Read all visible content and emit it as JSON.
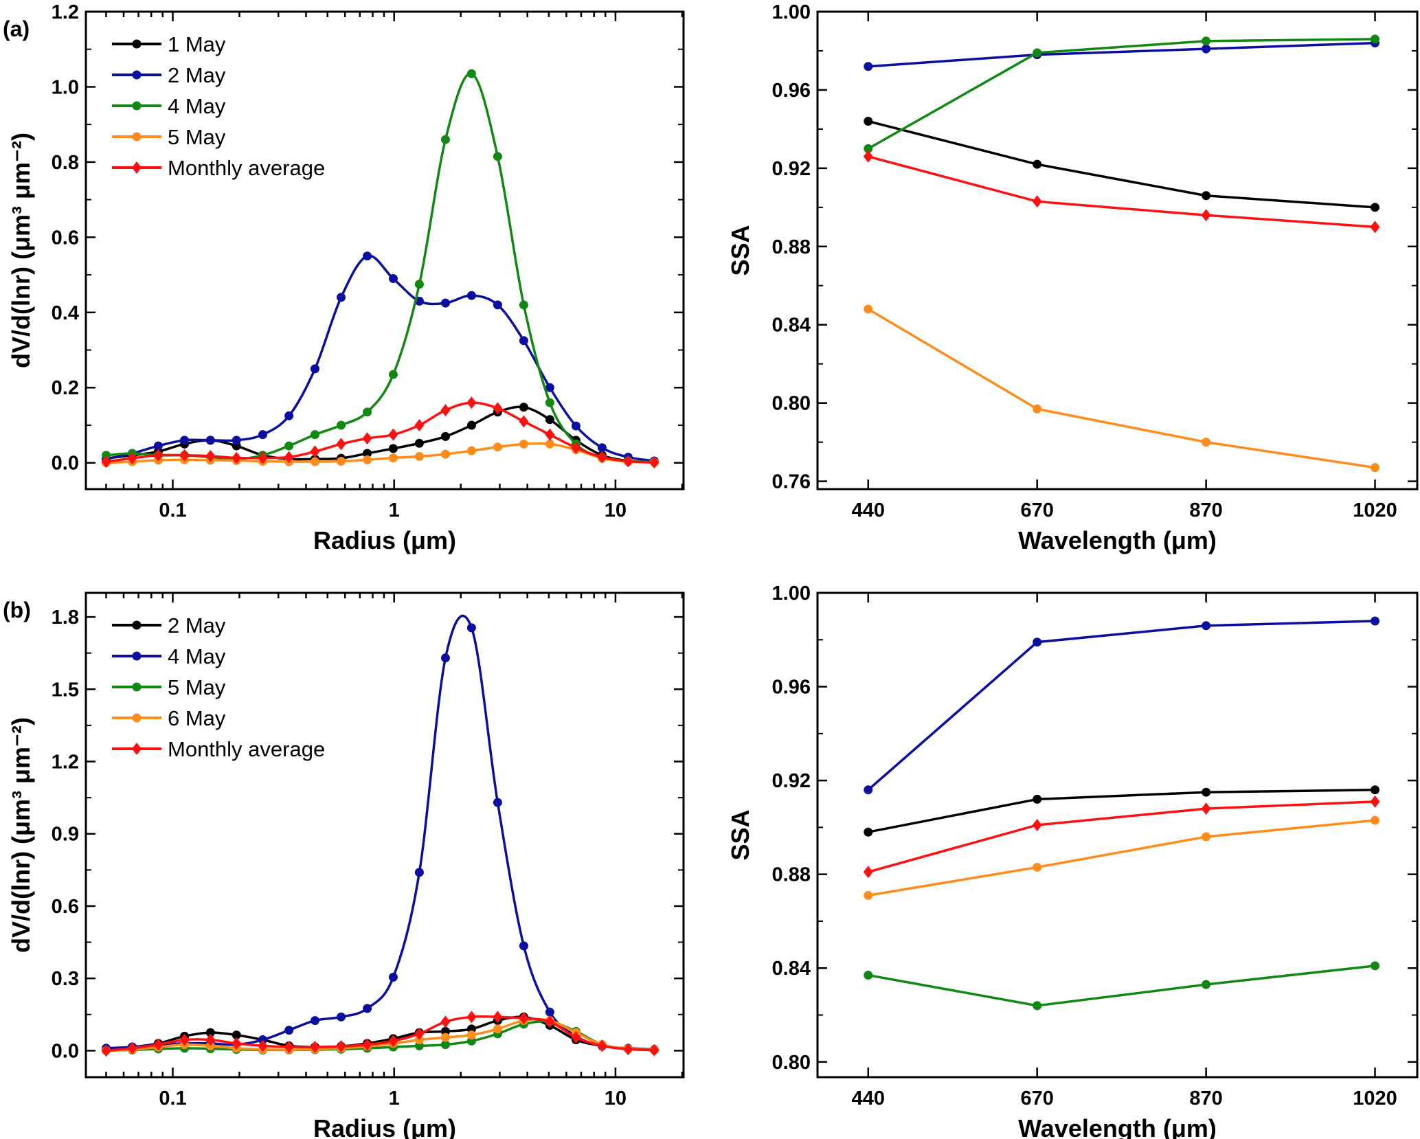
{
  "chart_data": [
    {
      "panel_label": "(a)",
      "type": "line",
      "smooth": true,
      "xscale": "log",
      "xlim": [
        0.0405,
        20.3
      ],
      "ylim": [
        -0.07,
        1.2
      ],
      "xlabel": "Radius (μm)",
      "ylabel": "dV/d(lnr) (μm³ μm⁻²)",
      "xticks": [
        {
          "v": 0.1,
          "label": "0.1"
        },
        {
          "v": 1,
          "label": "1"
        },
        {
          "v": 10,
          "label": "10"
        }
      ],
      "yticks": [
        {
          "v": 0,
          "label": "0.0"
        },
        {
          "v": 0.2,
          "label": "0.2"
        },
        {
          "v": 0.4,
          "label": "0.4"
        },
        {
          "v": 0.6,
          "label": "0.6"
        },
        {
          "v": 0.8,
          "label": "0.8"
        },
        {
          "v": 1.0,
          "label": "1.0"
        },
        {
          "v": 1.2,
          "label": "1.2"
        }
      ],
      "legend": "top-left",
      "x": [
        0.05,
        0.0656,
        0.086,
        0.113,
        0.148,
        0.194,
        0.255,
        0.335,
        0.439,
        0.576,
        0.756,
        0.991,
        1.3,
        1.706,
        2.238,
        2.936,
        3.852,
        5.053,
        6.63,
        8.698,
        11.41,
        14.97
      ],
      "series": [
        {
          "name": "1 May",
          "color": "#000000",
          "marker": "circle",
          "values": [
            0.012,
            0.02,
            0.03,
            0.05,
            0.06,
            0.045,
            0.02,
            0.01,
            0.01,
            0.012,
            0.025,
            0.038,
            0.052,
            0.07,
            0.1,
            0.135,
            0.148,
            0.115,
            0.06,
            0.02,
            0.005,
            0.002
          ]
        },
        {
          "name": "2 May",
          "color": "#0a0fa0",
          "marker": "circle",
          "values": [
            0.01,
            0.025,
            0.045,
            0.06,
            0.06,
            0.06,
            0.075,
            0.125,
            0.25,
            0.44,
            0.55,
            0.49,
            0.43,
            0.425,
            0.445,
            0.42,
            0.325,
            0.2,
            0.098,
            0.04,
            0.015,
            0.005
          ]
        },
        {
          "name": "4 May",
          "color": "#118811",
          "marker": "circle",
          "values": [
            0.02,
            0.025,
            0.02,
            0.02,
            0.015,
            0.01,
            0.02,
            0.045,
            0.075,
            0.1,
            0.135,
            0.235,
            0.475,
            0.86,
            1.035,
            0.815,
            0.42,
            0.16,
            0.05,
            0.015,
            0.005,
            0.002
          ]
        },
        {
          "name": "5 May",
          "color": "#ff8c1a",
          "marker": "circle",
          "values": [
            0,
            0.003,
            0.007,
            0.008,
            0.007,
            0.006,
            0.004,
            0.003,
            0.003,
            0.004,
            0.008,
            0.013,
            0.017,
            0.023,
            0.032,
            0.042,
            0.05,
            0.05,
            0.035,
            0.012,
            0.003,
            0.001
          ]
        },
        {
          "name": "Monthly average",
          "color": "#ff1010",
          "marker": "diamond",
          "values": [
            0.003,
            0.012,
            0.02,
            0.02,
            0.018,
            0.013,
            0.013,
            0.015,
            0.03,
            0.05,
            0.065,
            0.075,
            0.1,
            0.14,
            0.16,
            0.145,
            0.11,
            0.075,
            0.04,
            0.015,
            0.004,
            0.001
          ]
        }
      ]
    },
    {
      "type": "line",
      "xscale": "category",
      "categories": [
        "440",
        "670",
        "870",
        "1020"
      ],
      "ylim": [
        0.756,
        1.0
      ],
      "xlabel": "Wavelength (μm)",
      "ylabel": "SSA",
      "yticks": [
        {
          "v": 0.76,
          "label": "0.76"
        },
        {
          "v": 0.8,
          "label": "0.80"
        },
        {
          "v": 0.84,
          "label": "0.84"
        },
        {
          "v": 0.88,
          "label": "0.88"
        },
        {
          "v": 0.92,
          "label": "0.92"
        },
        {
          "v": 0.96,
          "label": "0.96"
        },
        {
          "v": 1.0,
          "label": "1.00"
        }
      ],
      "series": [
        {
          "color": "#000000",
          "marker": "circle",
          "values": [
            0.944,
            0.922,
            0.906,
            0.9
          ]
        },
        {
          "color": "#0a0fa0",
          "marker": "circle",
          "values": [
            0.972,
            0.978,
            0.981,
            0.984
          ]
        },
        {
          "color": "#118811",
          "marker": "circle",
          "values": [
            0.93,
            0.979,
            0.985,
            0.986
          ]
        },
        {
          "color": "#ff8c1a",
          "marker": "circle",
          "values": [
            0.848,
            0.797,
            0.78,
            0.767
          ]
        },
        {
          "color": "#ff1010",
          "marker": "diamond",
          "values": [
            0.926,
            0.903,
            0.896,
            0.89
          ]
        }
      ]
    },
    {
      "panel_label": "(b)",
      "type": "line",
      "smooth": true,
      "xscale": "log",
      "xlim": [
        0.0405,
        20.3
      ],
      "ylim": [
        -0.11,
        1.9
      ],
      "xlabel": "Radius (μm)",
      "ylabel": "dV/d(lnr) (μm³ μm⁻²)",
      "xticks": [
        {
          "v": 0.1,
          "label": "0.1"
        },
        {
          "v": 1,
          "label": "1"
        },
        {
          "v": 10,
          "label": "10"
        }
      ],
      "yticks": [
        {
          "v": 0,
          "label": "0.0"
        },
        {
          "v": 0.3,
          "label": "0.3"
        },
        {
          "v": 0.6,
          "label": "0.6"
        },
        {
          "v": 0.9,
          "label": "0.9"
        },
        {
          "v": 1.2,
          "label": "1.2"
        },
        {
          "v": 1.5,
          "label": "1.5"
        },
        {
          "v": 1.8,
          "label": "1.8"
        }
      ],
      "legend": "top-left",
      "x": [
        0.05,
        0.0656,
        0.086,
        0.113,
        0.148,
        0.194,
        0.255,
        0.335,
        0.439,
        0.576,
        0.756,
        0.991,
        1.3,
        1.706,
        2.238,
        2.936,
        3.852,
        5.053,
        6.63,
        8.698,
        11.41,
        14.97
      ],
      "series": [
        {
          "name": "2 May",
          "color": "#000000",
          "marker": "circle",
          "values": [
            0.01,
            0.015,
            0.03,
            0.06,
            0.075,
            0.065,
            0.045,
            0.02,
            0.015,
            0.018,
            0.03,
            0.05,
            0.075,
            0.08,
            0.09,
            0.125,
            0.14,
            0.105,
            0.045,
            0.02,
            0.008,
            0.003
          ]
        },
        {
          "name": "4 May",
          "color": "#0a0fa0",
          "marker": "circle",
          "values": [
            0.01,
            0.015,
            0.025,
            0.03,
            0.03,
            0.025,
            0.045,
            0.085,
            0.125,
            0.14,
            0.175,
            0.305,
            0.74,
            1.63,
            1.755,
            1.03,
            0.435,
            0.16,
            0.06,
            0.02,
            0.01,
            0.005
          ]
        },
        {
          "name": "5 May",
          "color": "#118811",
          "marker": "circle",
          "values": [
            0,
            0.003,
            0.007,
            0.01,
            0.008,
            0.005,
            0.003,
            0.003,
            0.004,
            0.006,
            0.01,
            0.015,
            0.02,
            0.025,
            0.04,
            0.07,
            0.11,
            0.12,
            0.08,
            0.025,
            0.008,
            0.003
          ]
        },
        {
          "name": "6 May",
          "color": "#ff8c1a",
          "marker": "circle",
          "values": [
            0,
            0.005,
            0.015,
            0.025,
            0.02,
            0.01,
            0.005,
            0.004,
            0.006,
            0.01,
            0.018,
            0.03,
            0.045,
            0.055,
            0.065,
            0.09,
            0.125,
            0.125,
            0.075,
            0.025,
            0.008,
            0.003
          ]
        },
        {
          "name": "Monthly average",
          "color": "#ff1010",
          "marker": "diamond",
          "values": [
            0,
            0.01,
            0.025,
            0.045,
            0.045,
            0.03,
            0.02,
            0.015,
            0.015,
            0.018,
            0.025,
            0.04,
            0.07,
            0.12,
            0.14,
            0.14,
            0.135,
            0.12,
            0.055,
            0.02,
            0.006,
            0.002
          ]
        }
      ]
    },
    {
      "type": "line",
      "xscale": "category",
      "categories": [
        "440",
        "670",
        "870",
        "1020"
      ],
      "ylim": [
        0.7935,
        1.0
      ],
      "xlabel": "Wavelength (μm)",
      "ylabel": "SSA",
      "yticks": [
        {
          "v": 0.8,
          "label": "0.80"
        },
        {
          "v": 0.84,
          "label": "0.84"
        },
        {
          "v": 0.88,
          "label": "0.88"
        },
        {
          "v": 0.92,
          "label": "0.92"
        },
        {
          "v": 0.96,
          "label": "0.96"
        },
        {
          "v": 1.0,
          "label": "1.00"
        }
      ],
      "series": [
        {
          "color": "#000000",
          "marker": "circle",
          "values": [
            0.898,
            0.912,
            0.915,
            0.916
          ]
        },
        {
          "color": "#0a0fa0",
          "marker": "circle",
          "values": [
            0.916,
            0.979,
            0.986,
            0.988
          ]
        },
        {
          "color": "#118811",
          "marker": "circle",
          "values": [
            0.837,
            0.824,
            0.833,
            0.841
          ]
        },
        {
          "color": "#ff8c1a",
          "marker": "circle",
          "values": [
            0.871,
            0.883,
            0.896,
            0.903
          ]
        },
        {
          "color": "#ff1010",
          "marker": "diamond",
          "values": [
            0.881,
            0.901,
            0.908,
            0.911
          ]
        }
      ]
    }
  ]
}
